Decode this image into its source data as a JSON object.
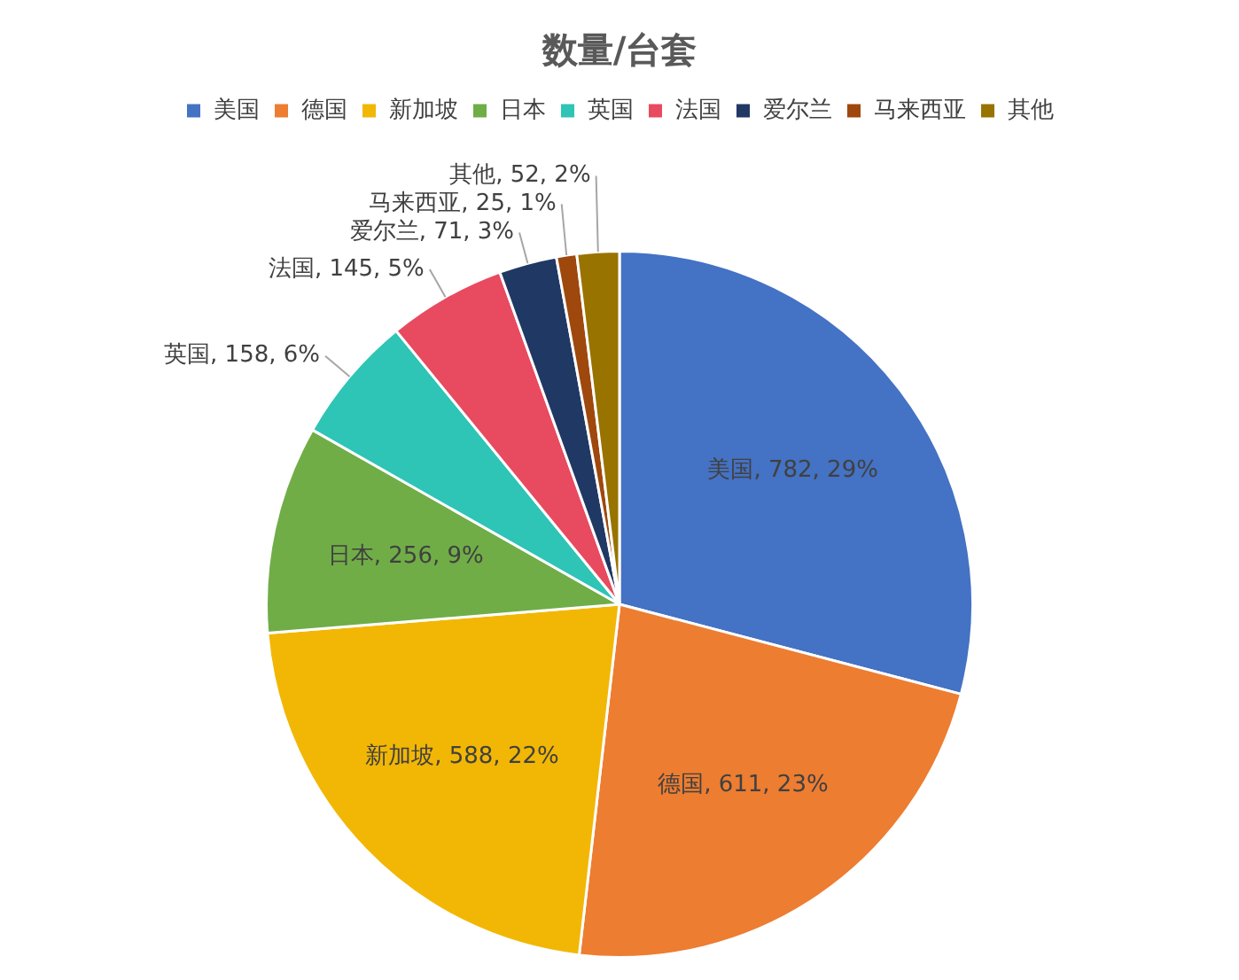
{
  "chart_data": {
    "type": "pie",
    "title": "数量/台套",
    "legend": "top",
    "categories": [
      "美国",
      "德国",
      "新加坡",
      "日本",
      "英国",
      "法国",
      "爱尔兰",
      "马来西亚",
      "其他"
    ],
    "values": [
      782,
      611,
      588,
      256,
      158,
      145,
      71,
      25,
      52
    ],
    "colors": [
      "#4472c4",
      "#ed7d31",
      "#f2b705",
      "#70ad47",
      "#2ec4b6",
      "#e84a5f",
      "#203864",
      "#9e480e",
      "#997300"
    ],
    "value_labels": [
      "美国, 782, 29%",
      "德国, 611, 23%",
      "新加坡, 588, 22%",
      "日本, 256, 9%",
      "英国, 158, 6%",
      "法国, 145, 5%",
      "爱尔兰, 71, 3%",
      "马来西亚, 25, 1%",
      "其他, 52, 2%"
    ]
  }
}
